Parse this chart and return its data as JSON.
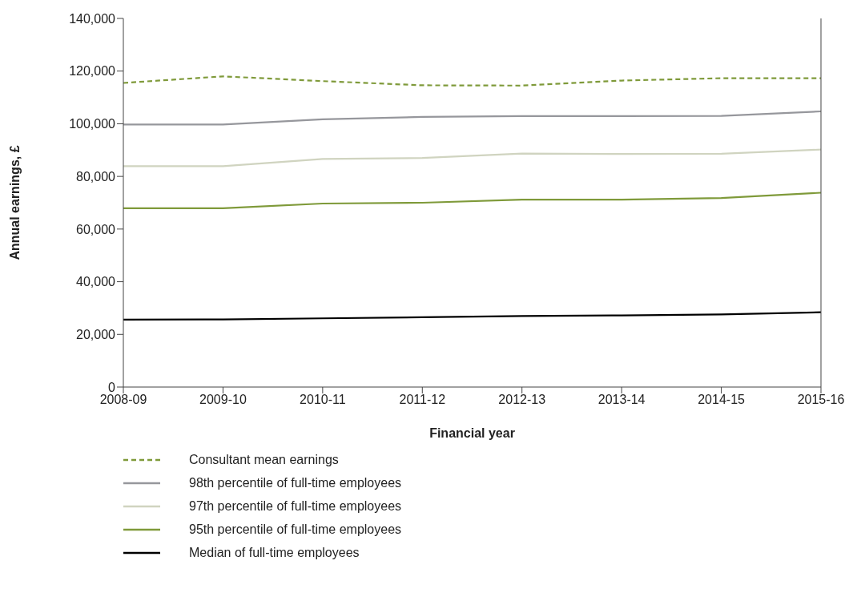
{
  "chart_data": {
    "type": "line",
    "xlabel": "Financial year",
    "ylabel": "Annual earnings, £",
    "categories": [
      "2008-09",
      "2009-10",
      "2010-11",
      "2011-12",
      "2012-13",
      "2013-14",
      "2014-15",
      "2015-16"
    ],
    "ylim": [
      0,
      140000
    ],
    "yticks": [
      {
        "value": 0,
        "label": "0"
      },
      {
        "value": 20000,
        "label": "20,000"
      },
      {
        "value": 40000,
        "label": "40,000"
      },
      {
        "value": 60000,
        "label": "60,000"
      },
      {
        "value": 80000,
        "label": "80,000"
      },
      {
        "value": 100000,
        "label": "100,000"
      },
      {
        "value": 120000,
        "label": "120,000"
      },
      {
        "value": 140000,
        "label": "140,000"
      }
    ],
    "series": [
      {
        "name": "Consultant mean earnings",
        "color": "#7f9a3a",
        "line_style": "dashed",
        "values": [
          115500,
          118000,
          116200,
          114600,
          114500,
          116400,
          117300,
          117300
        ]
      },
      {
        "name": "98th percentile of full-time employees",
        "color": "#96979c",
        "values": [
          99700,
          99700,
          101700,
          102600,
          102900,
          102900,
          103000,
          104700
        ]
      },
      {
        "name": "97th percentile of full-time employees",
        "color": "#d0d4c0",
        "values": [
          83900,
          83900,
          86600,
          87000,
          88700,
          88500,
          88600,
          90200
        ]
      },
      {
        "name": "95th percentile of full-time employees",
        "color": "#7f9a3a",
        "values": [
          67900,
          67900,
          69700,
          70000,
          71200,
          71200,
          71800,
          73800
        ]
      },
      {
        "name": "Median of full-time employees",
        "color": "#000000",
        "values": [
          25600,
          25700,
          26100,
          26500,
          27000,
          27200,
          27600,
          28400
        ]
      }
    ],
    "grid": false,
    "legend": "bottom",
    "marker": "none"
  }
}
